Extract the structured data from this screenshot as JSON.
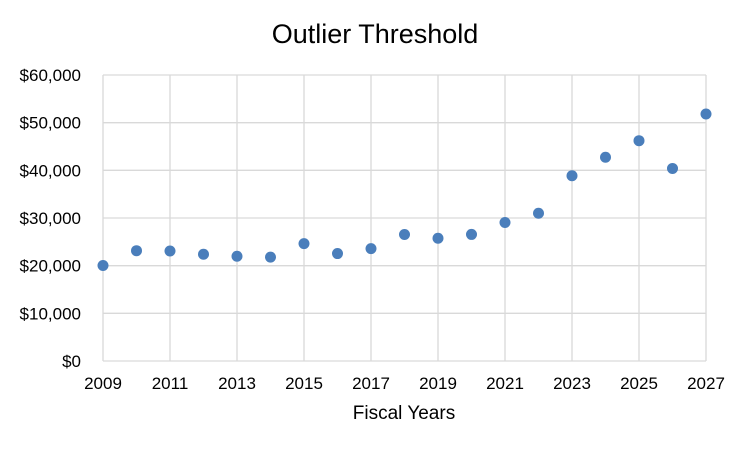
{
  "chart_data": {
    "type": "scatter",
    "title": "Outlier Threshold",
    "xlabel": "Fiscal Years",
    "ylabel": "",
    "xlim": [
      2009,
      2027
    ],
    "ylim": [
      0,
      60000
    ],
    "x_ticks": [
      2009,
      2011,
      2013,
      2015,
      2017,
      2019,
      2021,
      2023,
      2025,
      2027
    ],
    "x_tick_labels": [
      "2009",
      "2011",
      "2013",
      "2015",
      "2017",
      "2019",
      "2021",
      "2023",
      "2025",
      "2027"
    ],
    "y_ticks": [
      0,
      10000,
      20000,
      30000,
      40000,
      50000,
      60000
    ],
    "y_tick_labels": [
      "$0",
      "$10,000",
      "$20,000",
      "$30,000",
      "$40,000",
      "$50,000",
      "$60,000"
    ],
    "grid": true,
    "legend": "none",
    "marker_color": "#4a7ebb",
    "series": [
      {
        "x": [
          2009,
          2010,
          2011,
          2012,
          2013,
          2014,
          2015,
          2016,
          2017,
          2018,
          2019,
          2020,
          2021,
          2022,
          2023,
          2024,
          2025,
          2026,
          2027
        ],
        "y": [
          20045,
          23140,
          23075,
          22385,
          21985,
          21785,
          24625,
          22540,
          23570,
          26537,
          25745,
          26552,
          29064,
          30988,
          38859,
          42750,
          46217,
          40397,
          51820
        ]
      }
    ]
  }
}
